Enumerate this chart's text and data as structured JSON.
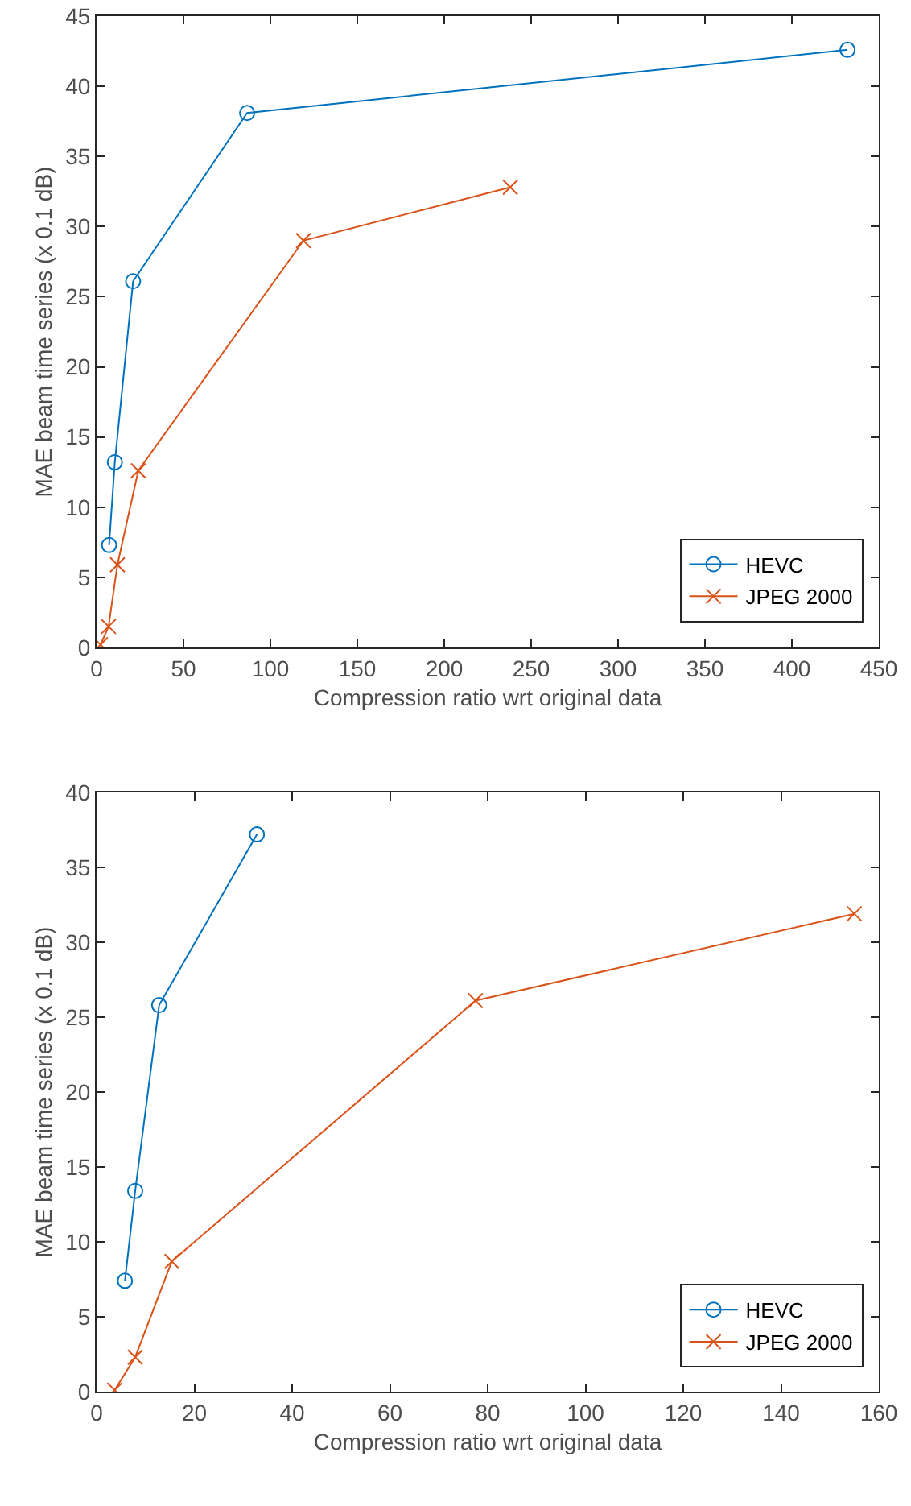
{
  "chart_data": [
    {
      "type": "line",
      "xlabel": "Compression ratio wrt original data",
      "ylabel": "MAE beam time series (x 0.1 dB)",
      "xlim": [
        0,
        450
      ],
      "xticks": [
        0,
        50,
        100,
        150,
        200,
        250,
        300,
        350,
        400,
        450
      ],
      "ylim": [
        0,
        45
      ],
      "yticks": [
        0,
        5,
        10,
        15,
        20,
        25,
        30,
        35,
        40,
        45
      ],
      "grid": false,
      "legend": "bottom right",
      "line_style": "solid",
      "series": [
        {
          "name": "HEVC",
          "color": "#0072bd",
          "marker": "circle",
          "x": [
            7.2,
            10.5,
            21,
            86.6,
            432
          ],
          "values": [
            7.3,
            13.2,
            26.1,
            38.1,
            42.6
          ]
        },
        {
          "name": "JPEG 2000",
          "color": "#d95319",
          "marker": "cross",
          "x": [
            2.3,
            6.9,
            12,
            24,
            119,
            238
          ],
          "values": [
            0.2,
            1.5,
            5.9,
            12.6,
            29,
            32.8
          ]
        }
      ]
    },
    {
      "type": "line",
      "xlabel": "Compression ratio wrt original data",
      "ylabel": "MAE beam time series (x 0.1 dB)",
      "xlim": [
        0,
        160
      ],
      "xticks": [
        0,
        20,
        40,
        60,
        80,
        100,
        120,
        140,
        160
      ],
      "ylim": [
        0,
        40
      ],
      "yticks": [
        0,
        5,
        10,
        15,
        20,
        25,
        30,
        35,
        40
      ],
      "grid": false,
      "legend": "bottom right",
      "line_style": "solid",
      "series": [
        {
          "name": "HEVC",
          "color": "#0072bd",
          "marker": "circle",
          "x": [
            5.8,
            7.9,
            12.8,
            32.8
          ],
          "values": [
            7.4,
            13.4,
            25.8,
            37.2
          ]
        },
        {
          "name": "JPEG 2000",
          "color": "#d95319",
          "marker": "cross",
          "x": [
            3.7,
            7.9,
            15.4,
            77.5,
            155
          ],
          "values": [
            0.1,
            2.3,
            8.7,
            26.1,
            31.9
          ]
        }
      ]
    }
  ]
}
